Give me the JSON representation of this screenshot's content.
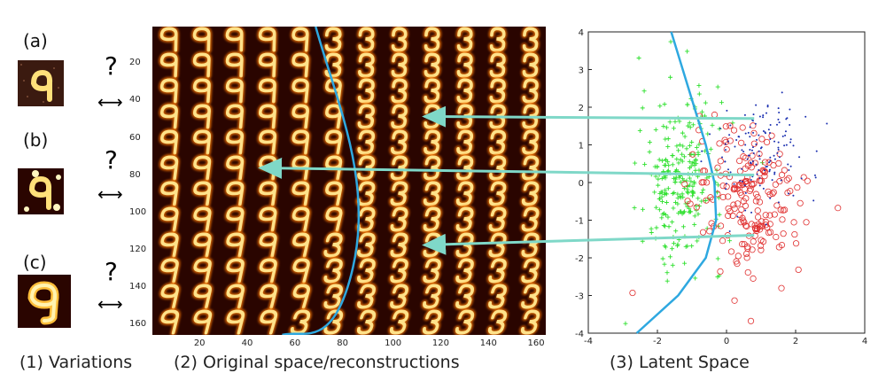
{
  "variations": {
    "items": [
      {
        "label": "(a)",
        "question": "?"
      },
      {
        "label": "(b)",
        "question": "?"
      },
      {
        "label": "(c)",
        "question": "?"
      }
    ]
  },
  "captions": {
    "variations": "(1) Variations",
    "reconstructions": "(2) Original space/reconstructions",
    "latent": "(3) Latent Space"
  },
  "grid": {
    "rows": 12,
    "cols": 12,
    "y_ticks": [
      "20",
      "40",
      "60",
      "80",
      "100",
      "120",
      "140",
      "160"
    ],
    "x_ticks": [
      "20",
      "40",
      "60",
      "80",
      "100",
      "120",
      "140",
      "160"
    ],
    "colors": {
      "background": "#2a0500",
      "digit": "#ffe28a",
      "glow": "#ff7a00",
      "boundary": "#2ea8e0"
    }
  },
  "chart_data": {
    "type": "scatter",
    "title": "",
    "xlabel": "",
    "ylabel": "",
    "xlim": [
      -4,
      4
    ],
    "ylim": [
      -4,
      4
    ],
    "x_ticks": [
      -4,
      -2,
      0,
      2,
      4
    ],
    "y_ticks": [
      -4,
      -3,
      -2,
      -1,
      0,
      1,
      2,
      3,
      4
    ],
    "grid": false,
    "series": [
      {
        "marker": "plus",
        "color": "#2ee02e",
        "center": [
          -1.3,
          0.1
        ],
        "spread": [
          0.6,
          1.1
        ],
        "count": 260
      },
      {
        "marker": "circle",
        "color": "#e03030",
        "center": [
          0.7,
          -0.5
        ],
        "spread": [
          0.8,
          1.0
        ],
        "count": 200
      },
      {
        "marker": "dot",
        "color": "#1a2fb0",
        "center": [
          1.0,
          0.8
        ],
        "spread": [
          0.7,
          0.8
        ],
        "count": 140
      }
    ],
    "boundary": {
      "color": "#2ea8e0",
      "points": [
        [
          -1.6,
          4
        ],
        [
          -1.1,
          2.5
        ],
        [
          -0.6,
          1.0
        ],
        [
          -0.35,
          0
        ],
        [
          -0.3,
          -1
        ],
        [
          -0.6,
          -2
        ],
        [
          -1.4,
          -3
        ],
        [
          -2.6,
          -4
        ]
      ]
    },
    "arrows": [
      {
        "from_latent": [
          0.8,
          1.7
        ],
        "to_cell": [
          3,
          8
        ]
      },
      {
        "from_latent": [
          0.8,
          0.2
        ],
        "to_cell": [
          5,
          3
        ]
      },
      {
        "from_latent": [
          0.8,
          -1.4
        ],
        "to_cell": [
          8,
          8
        ]
      }
    ]
  }
}
